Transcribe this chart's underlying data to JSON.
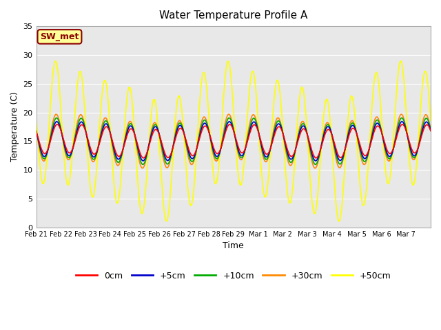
{
  "title": "Water Temperature Profile A",
  "xlabel": "Time",
  "ylabel": "Temperature (C)",
  "ylim": [
    0,
    35
  ],
  "yticks": [
    0,
    5,
    10,
    15,
    20,
    25,
    30,
    35
  ],
  "background_color": "#e8e8e8",
  "fig_bg": "#ffffff",
  "annotation_text": "SW_met",
  "annotation_bg": "#ffff99",
  "annotation_border": "#8B0000",
  "annotation_text_color": "#8B0000",
  "line_colors": {
    "0cm": "#ff0000",
    "+5cm": "#0000cc",
    "+10cm": "#00aa00",
    "+30cm": "#ff8800",
    "+50cm": "#ffff00"
  },
  "legend_labels": [
    "0cm",
    "+5cm",
    "+10cm",
    "+30cm",
    "+50cm"
  ],
  "x_tick_labels": [
    "Feb 21",
    "Feb 22",
    "Feb 23",
    "Feb 24",
    "Feb 25",
    "Feb 26",
    "Feb 27",
    "Feb 28",
    "Feb 29",
    "Mar 1",
    "Mar 2",
    "Mar 3",
    "Mar 4",
    "Mar 5",
    "Mar 6",
    "Mar 7"
  ],
  "n_days": 16,
  "amplitude_50cm": 10.5,
  "amplitude_30cm": 4.0,
  "amplitude_10cm": 3.5,
  "amplitude_5cm": 3.0,
  "amplitude_0cm": 2.5,
  "mean_temp": 15.0,
  "phase_shift_hours": 14.0,
  "points_per_day": 24
}
